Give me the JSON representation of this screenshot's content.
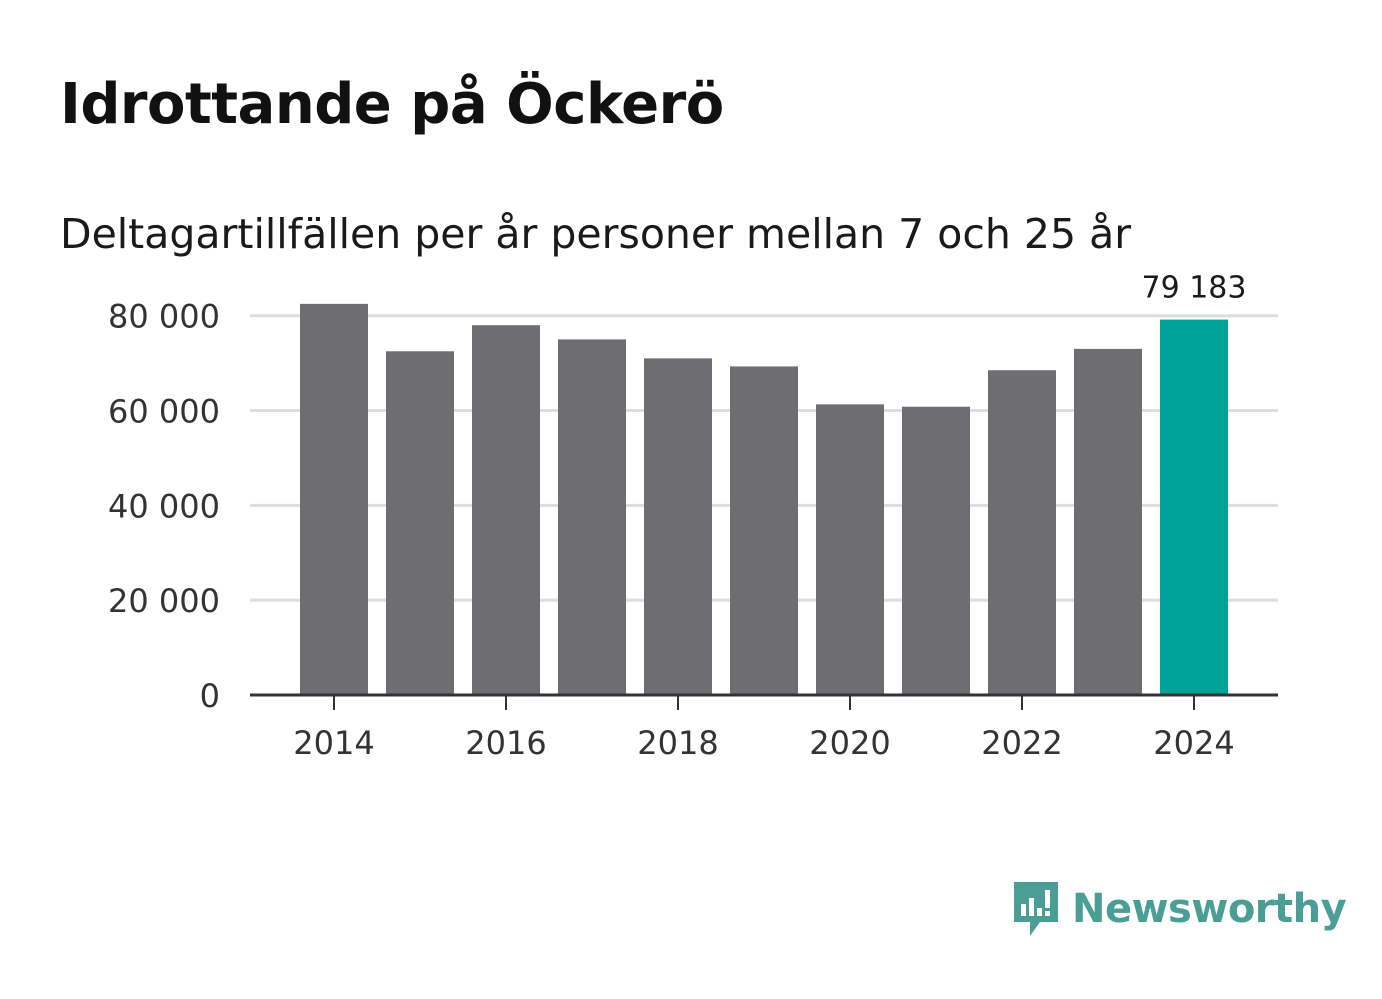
{
  "title": "Idrottande på Öckerö",
  "subtitle": "Deltagartillfällen per år personer mellan 7 och 25 år",
  "brand": {
    "name": "Newsworthy",
    "color": "#4a9e96",
    "icon": "newsworthy-logo-icon"
  },
  "colors": {
    "bar": "#6e6d72",
    "highlight": "#00a398",
    "grid": "#dddddd",
    "axis": "#333333"
  },
  "chart_data": {
    "type": "bar",
    "title": "Idrottande på Öckerö",
    "subtitle": "Deltagartillfällen per år personer mellan 7 och 25 år",
    "xlabel": "",
    "ylabel": "",
    "categories": [
      "2014",
      "2015",
      "2016",
      "2017",
      "2018",
      "2019",
      "2020",
      "2021",
      "2022",
      "2023",
      "2024"
    ],
    "values": [
      82500,
      72500,
      78000,
      75000,
      71000,
      69300,
      61300,
      60800,
      68500,
      73000,
      79183
    ],
    "ylim": [
      0,
      85000
    ],
    "yticks": [
      0,
      20000,
      40000,
      60000,
      80000
    ],
    "ytick_labels": [
      "0",
      "20 000",
      "40 000",
      "60 000",
      "80 000"
    ],
    "xtick_labels": [
      "2014",
      "2016",
      "2018",
      "2020",
      "2022",
      "2024"
    ],
    "highlight_index": 10,
    "highlight_label": "79 183",
    "grid": true,
    "legend": "none"
  }
}
